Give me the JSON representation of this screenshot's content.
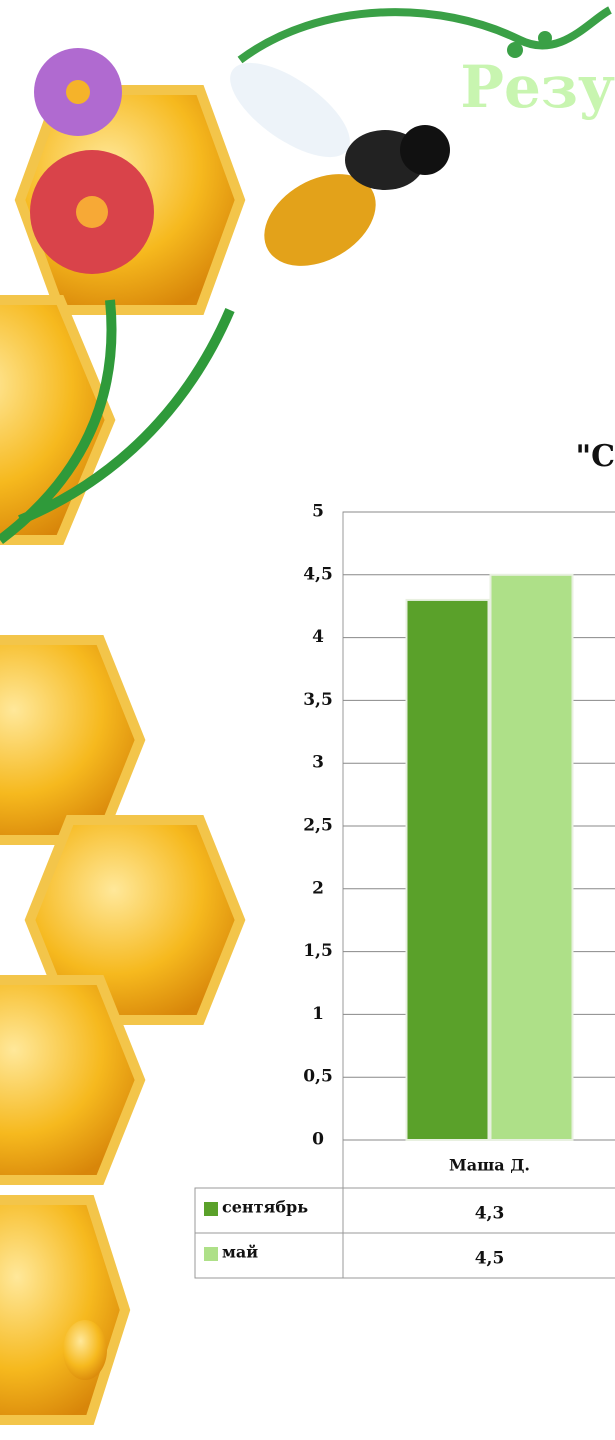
{
  "chart_data": {
    "type": "bar",
    "title": "\"С",
    "slide_title": "Резу",
    "categories": [
      "Маша Д."
    ],
    "series": [
      {
        "name": "сентябрь",
        "color": "#5aa12a",
        "values": [
          4.3
        ],
        "value_labels": [
          "4,3"
        ]
      },
      {
        "name": "май",
        "color": "#aee088",
        "values": [
          4.5
        ],
        "value_labels": [
          "4,5"
        ]
      }
    ],
    "ylim": [
      0,
      5
    ],
    "yticks": [
      0,
      {
        "value": 0.5,
        "label": "0,5"
      },
      1,
      {
        "value": 1.5,
        "label": "1,5"
      },
      2,
      {
        "value": 2.5,
        "label": "2,5"
      },
      3,
      {
        "value": 3.5,
        "label": "3,5"
      },
      4,
      {
        "value": 4.5,
        "label": "4,5"
      },
      5
    ],
    "grid": true,
    "data_table": true
  }
}
